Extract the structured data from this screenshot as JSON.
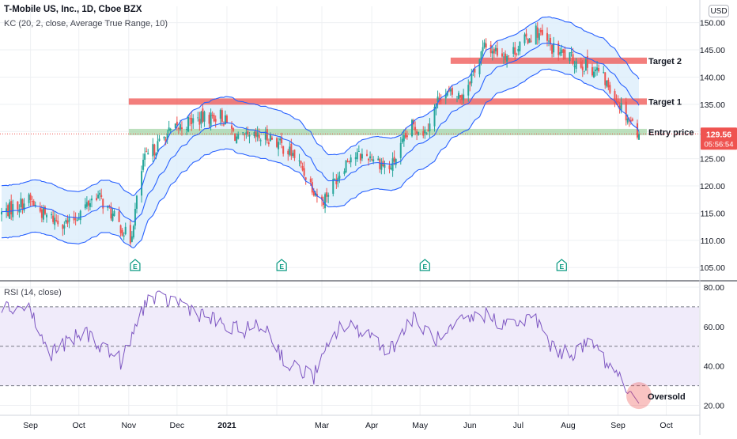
{
  "header": {
    "title": "T-Mobile US, Inc., 1D, Cboe BZX",
    "indicator": "KC (20, 2, close, Average True Range, 10)",
    "currency": "USD"
  },
  "price_pane": {
    "last_price": "129.56",
    "countdown": "05:56:54",
    "y_ticks": [
      "150.00",
      "145.00",
      "140.00",
      "135.00",
      "130.00",
      "125.00",
      "120.00",
      "115.00",
      "110.00",
      "105.00"
    ],
    "earnings_marker": "E",
    "levels": [
      {
        "label": "Target 2",
        "price": 143.0,
        "color": "#ef5350"
      },
      {
        "label": "Target 1",
        "price": 135.5,
        "color": "#ef5350"
      },
      {
        "label": "Entry price",
        "price": 129.9,
        "color": "#a5d6a7"
      }
    ]
  },
  "rsi_pane": {
    "label": "RSI (14, close)",
    "y_ticks": [
      "80.00",
      "60.00",
      "40.00",
      "20.00"
    ],
    "upper_band": 70,
    "mid_band": 50,
    "lower_band": 30,
    "annotation": "Oversold"
  },
  "x_axis": {
    "labels": [
      "Sep",
      "Oct",
      "Nov",
      "Dec",
      "2021",
      "Mar",
      "Apr",
      "May",
      "Jun",
      "Jul",
      "Aug",
      "Sep",
      "Oct"
    ]
  },
  "colors": {
    "up": "#26a69a",
    "down": "#ef5350",
    "keltner": "#2962ff",
    "keltner_fill": "#d9ecfb",
    "rsi_line": "#7e57c2",
    "rsi_fill": "#f0ebfa",
    "target_band": "#ef5350",
    "entry_band": "#a5d6a7"
  },
  "chart_data": [
    {
      "type": "candlestick",
      "title": "T-Mobile US, Inc., 1D, Cboe BZX",
      "ylim": [
        103,
        153
      ],
      "x_range": [
        "2020-08-14",
        "2021-09-14"
      ],
      "keyframes": [
        {
          "date": "2020-08-14",
          "close": 115.0
        },
        {
          "date": "2020-08-31",
          "close": 117.5
        },
        {
          "date": "2020-09-10",
          "close": 114.5
        },
        {
          "date": "2020-09-25",
          "close": 113.0
        },
        {
          "date": "2020-10-12",
          "close": 118.5
        },
        {
          "date": "2020-10-22",
          "close": 114.5
        },
        {
          "date": "2020-11-02",
          "close": 110.0
        },
        {
          "date": "2020-11-10",
          "close": 124.5
        },
        {
          "date": "2020-11-25",
          "close": 129.5
        },
        {
          "date": "2020-12-10",
          "close": 132.0
        },
        {
          "date": "2020-12-28",
          "close": 133.0
        },
        {
          "date": "2021-01-08",
          "close": 128.5
        },
        {
          "date": "2021-01-28",
          "close": 129.0
        },
        {
          "date": "2021-02-12",
          "close": 125.5
        },
        {
          "date": "2021-03-01",
          "close": 117.0
        },
        {
          "date": "2021-03-18",
          "close": 125.5
        },
        {
          "date": "2021-04-01",
          "close": 125.5
        },
        {
          "date": "2021-04-12",
          "close": 123.0
        },
        {
          "date": "2021-04-26",
          "close": 131.0
        },
        {
          "date": "2021-05-04",
          "close": 130.0
        },
        {
          "date": "2021-05-14",
          "close": 137.0
        },
        {
          "date": "2021-05-27",
          "close": 136.5
        },
        {
          "date": "2021-06-10",
          "close": 145.5
        },
        {
          "date": "2021-06-25",
          "close": 144.0
        },
        {
          "date": "2021-07-12",
          "close": 148.5
        },
        {
          "date": "2021-07-23",
          "close": 145.0
        },
        {
          "date": "2021-08-05",
          "close": 143.0
        },
        {
          "date": "2021-08-20",
          "close": 141.0
        },
        {
          "date": "2021-09-01",
          "close": 135.5
        },
        {
          "date": "2021-09-14",
          "close": 129.56
        }
      ],
      "keltner_channel": {
        "length": 20,
        "multiplier": 2,
        "atr_length": 10,
        "approx_half_width": 4.8
      },
      "earnings_dates": [
        "2020-11-05",
        "2021-02-04",
        "2021-05-04",
        "2021-07-28"
      ]
    },
    {
      "type": "line",
      "title": "RSI (14, close)",
      "ylim": [
        15,
        82
      ],
      "bands": [
        30,
        50,
        70
      ],
      "keyframes": [
        {
          "date": "2020-08-14",
          "value": 70
        },
        {
          "date": "2020-08-31",
          "value": 70
        },
        {
          "date": "2020-09-12",
          "value": 46
        },
        {
          "date": "2020-10-05",
          "value": 57
        },
        {
          "date": "2020-10-28",
          "value": 42
        },
        {
          "date": "2020-11-12",
          "value": 74
        },
        {
          "date": "2020-12-01",
          "value": 73
        },
        {
          "date": "2021-01-04",
          "value": 58
        },
        {
          "date": "2021-01-25",
          "value": 60
        },
        {
          "date": "2021-02-08",
          "value": 40
        },
        {
          "date": "2021-02-24",
          "value": 35
        },
        {
          "date": "2021-03-12",
          "value": 60
        },
        {
          "date": "2021-03-28",
          "value": 58
        },
        {
          "date": "2021-04-12",
          "value": 48
        },
        {
          "date": "2021-04-26",
          "value": 64
        },
        {
          "date": "2021-05-14",
          "value": 52
        },
        {
          "date": "2021-05-26",
          "value": 62
        },
        {
          "date": "2021-06-10",
          "value": 66
        },
        {
          "date": "2021-06-25",
          "value": 61
        },
        {
          "date": "2021-07-12",
          "value": 64
        },
        {
          "date": "2021-07-23",
          "value": 48
        },
        {
          "date": "2021-08-05",
          "value": 47
        },
        {
          "date": "2021-08-16",
          "value": 52
        },
        {
          "date": "2021-08-25",
          "value": 42
        },
        {
          "date": "2021-09-03",
          "value": 34
        },
        {
          "date": "2021-09-14",
          "value": 21
        }
      ]
    }
  ]
}
